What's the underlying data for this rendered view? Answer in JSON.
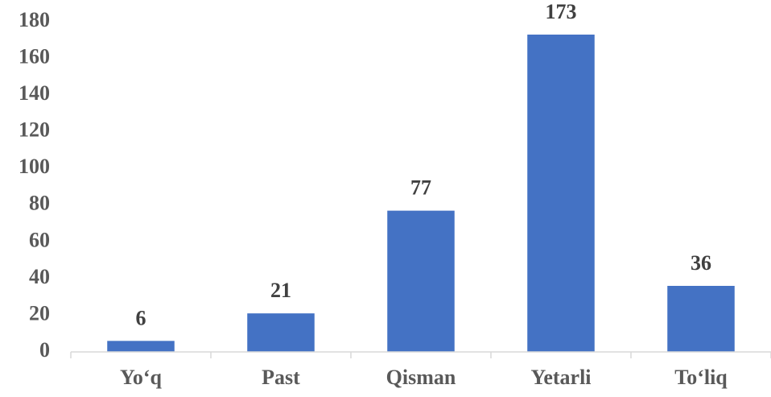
{
  "chart_data": {
    "type": "bar",
    "categories": [
      "Yo‘q",
      "Past",
      "Qisman",
      "Yetarli",
      "To‘liq"
    ],
    "values": [
      6,
      21,
      77,
      173,
      36
    ],
    "color": "#4472c4",
    "ylim": [
      0,
      180
    ],
    "yticks": [
      0,
      20,
      40,
      60,
      80,
      100,
      120,
      140,
      160,
      180
    ],
    "grid": false,
    "data_labels": true
  }
}
